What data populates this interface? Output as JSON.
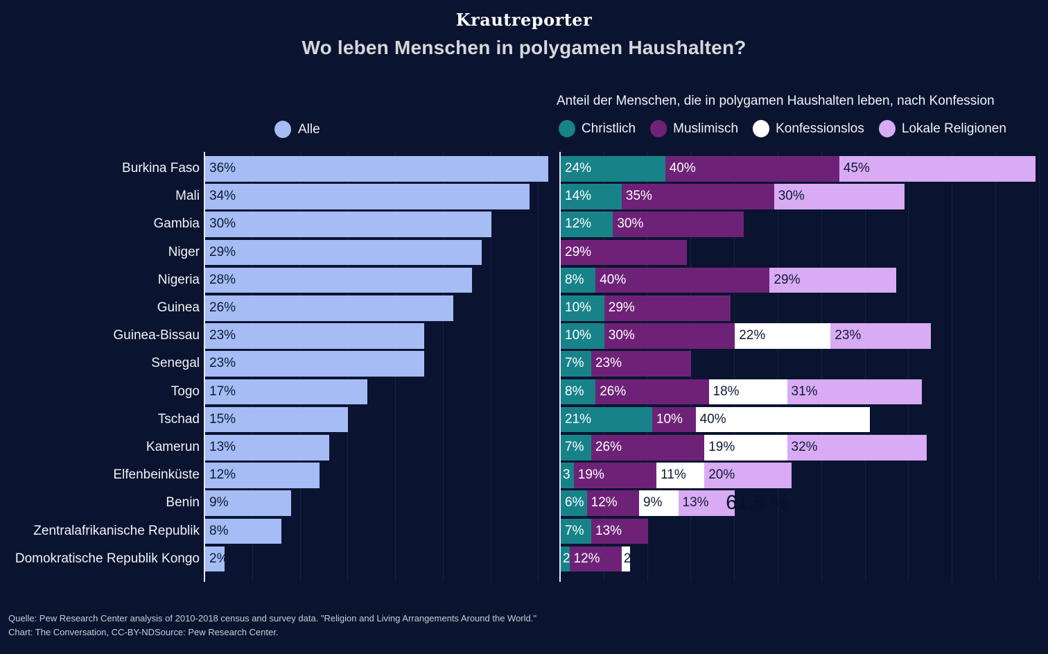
{
  "page": {
    "brand": "Krautreporter",
    "title": "Wo leben Menschen in polygamen Haushalten?",
    "source_line1": "Quelle: Pew Research Center analysis of 2010-2018 census and survey data. \"Religion and Living Arrangements Around the World.\"",
    "source_line2": "Chart: The Conversation, CC-BY-NDSource: Pew Research Center."
  },
  "colors": {
    "background": "#0a1430",
    "all_bar": "#a5bcf4",
    "christian": "#178389",
    "muslim": "#6e2277",
    "unaffiliated": "#ffffff",
    "local": "#d9abf4",
    "dark_label": "#0e1b35",
    "light_label": "#ffffff",
    "axis": "#ece8f7",
    "title_text": "#d7d7db",
    "body_text": "#f2f2f5",
    "source_text": "#c7ccd5"
  },
  "left_chart": {
    "legend_label": "Alle"
  },
  "right_chart": {
    "subtitle": "Anteil der Menschen, die in polygamen Haushalten leben, nach Konfession",
    "legend": [
      {
        "key": "christlich",
        "label": "Christlich",
        "color_key": "christian"
      },
      {
        "key": "muslimisch",
        "label": "Muslimisch",
        "color_key": "muslim"
      },
      {
        "key": "konfessionslos",
        "label": "Konfessionslos",
        "color_key": "unaffiliated"
      },
      {
        "key": "lokale-religionen",
        "label": "Lokale Religionen",
        "color_key": "local"
      }
    ]
  },
  "chart_data": [
    {
      "type": "bar",
      "title": "Alle",
      "unit": "%",
      "xlim": [
        0,
        36
      ],
      "grid": true,
      "categories": [
        "Burkina Faso",
        "Mali",
        "Gambia",
        "Niger",
        "Nigeria",
        "Guinea",
        "Guinea-Bissau",
        "Senegal",
        "Togo",
        "Tschad",
        "Kamerun",
        "Elfenbeinküste",
        "Benin",
        "Zentralafrikanische Republik",
        "Domokratische Republik Kongo"
      ],
      "values": [
        36,
        34,
        30,
        29,
        28,
        26,
        23,
        23,
        17,
        15,
        13,
        12,
        9,
        8,
        2
      ],
      "labels": [
        "36%",
        "34%",
        "30%",
        "29%",
        "28%",
        "26%",
        "23%",
        "23%",
        "17%",
        "15%",
        "13%",
        "12%",
        "9%",
        "8%",
        "2%"
      ],
      "color_key": "all_bar",
      "label_color_key": "dark_label"
    },
    {
      "type": "stacked-bar",
      "title": "Anteil der Menschen, die in polygamen Haushalten leben, nach Konfession",
      "unit": "%",
      "xlim": [
        0,
        110
      ],
      "grid": true,
      "categories": [
        "Burkina Faso",
        "Mali",
        "Gambia",
        "Niger",
        "Nigeria",
        "Guinea",
        "Guinea-Bissau",
        "Senegal",
        "Togo",
        "Tschad",
        "Kamerun",
        "Elfenbeinküste",
        "Benin",
        "Zentralafrikanische Republik",
        "Domokratische Republik Kongo"
      ],
      "series": [
        {
          "name": "Christlich",
          "color_key": "christian",
          "label_color_key": "light_label",
          "values": [
            24,
            14,
            12,
            0,
            8,
            10,
            10,
            7,
            8,
            21,
            7,
            3,
            6,
            7,
            2
          ],
          "labels": [
            "24%",
            "14%",
            "12%",
            "",
            "8%",
            "10%",
            "10%",
            "7%",
            "8%",
            "21%",
            "7%",
            "3",
            "6%",
            "7%",
            "2"
          ]
        },
        {
          "name": "Muslimisch",
          "color_key": "muslim",
          "label_color_key": "light_label",
          "values": [
            40,
            35,
            30,
            29,
            40,
            29,
            30,
            23,
            26,
            10,
            26,
            19,
            12,
            13,
            12
          ],
          "labels": [
            "40%",
            "35%",
            "30%",
            "29%",
            "40%",
            "29%",
            "30%",
            "23%",
            "26%",
            "10%",
            "26%",
            "19%",
            "12%",
            "13%",
            "12%"
          ]
        },
        {
          "name": "Konfessionslos",
          "color_key": "unaffiliated",
          "label_color_key": "dark_label",
          "values": [
            0,
            0,
            0,
            0,
            0,
            0,
            22,
            0,
            18,
            40,
            19,
            11,
            9,
            0,
            2
          ],
          "labels": [
            "",
            "",
            "",
            "",
            "",
            "",
            "22%",
            "",
            "18%",
            "40%",
            "19%",
            "11%",
            "9%",
            "",
            "2"
          ]
        },
        {
          "name": "Lokale Religionen",
          "color_key": "local",
          "label_color_key": "dark_label",
          "values": [
            45,
            30,
            0,
            0,
            29,
            0,
            23,
            0,
            31,
            0,
            32,
            20,
            13,
            0,
            0
          ],
          "labels": [
            "45%",
            "30%",
            "",
            "",
            "29%",
            "",
            "23%",
            "",
            "31%",
            "",
            "32%",
            "20%",
            "13%",
            "",
            ""
          ]
        }
      ],
      "annotations": [
        {
          "text": "61,5 %",
          "row_index": 12
        }
      ]
    }
  ]
}
